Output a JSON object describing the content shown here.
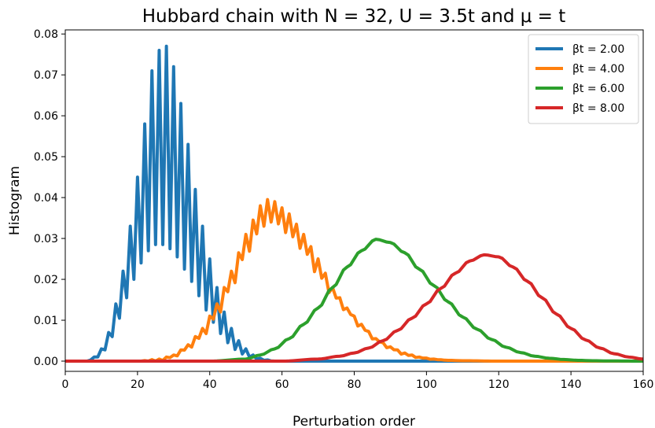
{
  "chart_data": {
    "type": "line",
    "title": "Hubbard chain with N = 32, U = 3.5t and μ = t",
    "xlabel": "Perturbation order",
    "ylabel": "Histogram",
    "xlim": [
      0,
      160
    ],
    "ylim": [
      -0.0025,
      0.081
    ],
    "xticks": [
      0,
      20,
      40,
      60,
      80,
      100,
      120,
      140,
      160
    ],
    "xtick_labels": [
      "0",
      "20",
      "40",
      "60",
      "80",
      "100",
      "120",
      "140",
      "160"
    ],
    "yticks": [
      0.0,
      0.01,
      0.02,
      0.03,
      0.04,
      0.05,
      0.06,
      0.07,
      0.08
    ],
    "ytick_labels": [
      "0.00",
      "0.01",
      "0.02",
      "0.03",
      "0.04",
      "0.05",
      "0.06",
      "0.07",
      "0.08"
    ],
    "grid": false,
    "legend_position": "top-right",
    "series": [
      {
        "name": "βt = 2.00",
        "color": "#1f77b4",
        "peak_x": 28,
        "x": [
          0,
          2,
          4,
          6,
          8,
          10,
          12,
          14,
          16,
          18,
          20,
          22,
          24,
          26,
          28,
          30,
          32,
          34,
          36,
          38,
          40,
          42,
          44,
          46,
          48,
          50,
          52,
          54,
          56,
          58,
          60
        ],
        "low_envelope": [
          0,
          0,
          0,
          0,
          0.0005,
          0.0015,
          0.004,
          0.008,
          0.013,
          0.018,
          0.022,
          0.026,
          0.028,
          0.029,
          0.028,
          0.027,
          0.024,
          0.021,
          0.018,
          0.014,
          0.011,
          0.008,
          0.0055,
          0.0035,
          0.0022,
          0.0013,
          0.0007,
          0.0003,
          0.0001,
          0,
          0
        ],
        "high_envelope": [
          0,
          0,
          0,
          0,
          0.001,
          0.003,
          0.007,
          0.014,
          0.022,
          0.033,
          0.045,
          0.058,
          0.071,
          0.076,
          0.077,
          0.072,
          0.063,
          0.053,
          0.042,
          0.033,
          0.025,
          0.018,
          0.012,
          0.008,
          0.005,
          0.003,
          0.0015,
          0.0007,
          0.0003,
          0,
          0
        ]
      },
      {
        "name": "βt = 4.00",
        "color": "#ff7f0e",
        "peak_x": 56,
        "x": [
          0,
          20,
          26,
          30,
          34,
          38,
          42,
          46,
          50,
          54,
          56,
          58,
          62,
          66,
          70,
          74,
          78,
          82,
          86,
          90,
          94,
          98,
          102,
          106,
          110,
          120,
          160
        ],
        "low_envelope": [
          0,
          0,
          0,
          0.001,
          0.003,
          0.006,
          0.011,
          0.018,
          0.026,
          0.032,
          0.034,
          0.034,
          0.031,
          0.027,
          0.021,
          0.016,
          0.012,
          0.008,
          0.005,
          0.003,
          0.0015,
          0.0008,
          0.0004,
          0.0002,
          0.0001,
          0,
          0
        ],
        "high_envelope": [
          0,
          0,
          0.0005,
          0.0015,
          0.004,
          0.008,
          0.014,
          0.022,
          0.031,
          0.038,
          0.0395,
          0.039,
          0.036,
          0.031,
          0.025,
          0.018,
          0.013,
          0.009,
          0.0055,
          0.0035,
          0.002,
          0.001,
          0.0005,
          0.0002,
          0.0001,
          0,
          0
        ]
      },
      {
        "name": "βt = 6.00",
        "color": "#2ca02c",
        "peak_x": 86,
        "x": [
          0,
          40,
          50,
          54,
          58,
          62,
          66,
          70,
          74,
          78,
          82,
          86,
          90,
          94,
          98,
          102,
          106,
          110,
          114,
          118,
          122,
          126,
          130,
          134,
          138,
          142,
          146,
          150,
          160
        ],
        "values": [
          0,
          0,
          0.0005,
          0.0015,
          0.003,
          0.0055,
          0.009,
          0.013,
          0.018,
          0.023,
          0.027,
          0.0298,
          0.029,
          0.0265,
          0.0225,
          0.0185,
          0.0145,
          0.0108,
          0.0078,
          0.0053,
          0.0034,
          0.0021,
          0.0012,
          0.0007,
          0.0004,
          0.0002,
          0.0001,
          5e-05,
          0
        ]
      },
      {
        "name": "βt = 8.00",
        "color": "#d62728",
        "peak_x": 116,
        "x": [
          0,
          60,
          70,
          76,
          80,
          84,
          88,
          92,
          96,
          100,
          104,
          108,
          112,
          116,
          120,
          124,
          128,
          132,
          136,
          140,
          144,
          148,
          152,
          156,
          160
        ],
        "values": [
          0,
          0,
          0.0005,
          0.0012,
          0.002,
          0.0032,
          0.005,
          0.0075,
          0.0105,
          0.014,
          0.0178,
          0.0215,
          0.0245,
          0.026,
          0.0255,
          0.023,
          0.0195,
          0.0155,
          0.0115,
          0.008,
          0.0052,
          0.0032,
          0.0018,
          0.001,
          0.0005
        ]
      }
    ]
  }
}
